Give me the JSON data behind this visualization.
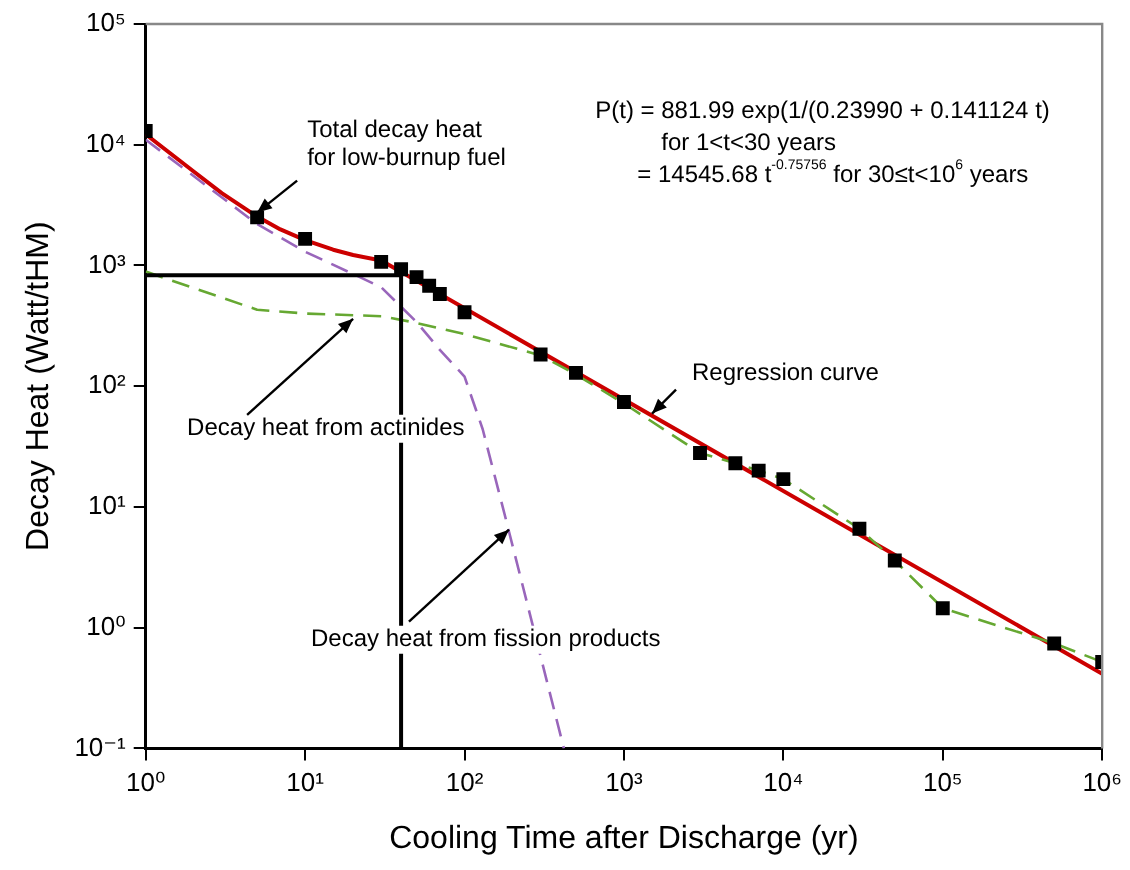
{
  "chart_data": {
    "type": "line",
    "xlabel": "Cooling Time after Discharge (yr)",
    "ylabel": "Decay Heat (Watt/tHM)",
    "log": "xy",
    "grid": false,
    "legend": false,
    "xlim": [
      1,
      1000000
    ],
    "ylim": [
      0.1,
      100000
    ],
    "xticks": [
      {
        "value": 1,
        "label": "10⁰"
      },
      {
        "value": 10,
        "label": "10¹"
      },
      {
        "value": 100,
        "label": "10²"
      },
      {
        "value": 1000,
        "label": "10³"
      },
      {
        "value": 10000,
        "label": "10⁴"
      },
      {
        "value": 100000,
        "label": "10⁵"
      },
      {
        "value": 1000000,
        "label": "10⁶"
      }
    ],
    "yticks": [
      {
        "value": 0.1,
        "label": "10⁻¹"
      },
      {
        "value": 1,
        "label": "10⁰"
      },
      {
        "value": 10,
        "label": "10¹"
      },
      {
        "value": 100,
        "label": "10²"
      },
      {
        "value": 1000,
        "label": "10³"
      },
      {
        "value": 10000,
        "label": "10⁴"
      },
      {
        "value": 100000,
        "label": "10⁵"
      }
    ],
    "series": [
      {
        "type": "line",
        "color": "#cc0000",
        "line_style": "solid",
        "marker": "none",
        "x": [
          1,
          2,
          3,
          5,
          7,
          10,
          15,
          20,
          30,
          1000000
        ],
        "values": [
          12200,
          6000,
          3980,
          2540,
          1990,
          1620,
          1350,
          1220,
          1100,
          0.415
        ]
      },
      {
        "type": "line",
        "color": "#9966bb",
        "line_style": "dashed",
        "marker": "none",
        "x": [
          1,
          5,
          10,
          20,
          30,
          50,
          70,
          100,
          130,
          180,
          420
        ],
        "values": [
          11000,
          2200,
          1300,
          850,
          660,
          340,
          200,
          120,
          44,
          8.3,
          0.1
        ]
      },
      {
        "type": "line",
        "color": "#66a832",
        "line_style": "dashed",
        "marker": "none",
        "x": [
          1,
          5,
          10,
          30,
          47,
          100,
          300,
          500,
          1000,
          3000,
          5000,
          7000,
          10000,
          30000,
          50000,
          100000,
          500000,
          1000000
        ],
        "values": [
          890,
          430,
          400,
          380,
          340,
          270,
          180,
          125,
          72,
          28,
          23,
          20,
          17,
          6.6,
          3.6,
          1.45,
          0.74,
          0.52
        ]
      },
      {
        "type": "scatter",
        "color": "#000000",
        "marker": "square",
        "x": [
          1,
          5,
          10,
          30,
          40,
          50,
          60,
          70,
          100,
          300,
          500,
          1000,
          3000,
          5000,
          7000,
          10000,
          30000,
          50000,
          100000,
          500000,
          1000000
        ],
        "values": [
          13000,
          2500,
          1660,
          1070,
          930,
          800,
          680,
          580,
          410,
          183,
          129,
          74,
          28,
          23,
          20,
          17,
          6.6,
          3.6,
          1.45,
          0.74,
          0.52
        ]
      },
      {
        "type": "line",
        "color": "#000000",
        "line_style": "solid",
        "marker": "none",
        "x": [
          1,
          40,
          40
        ],
        "values": [
          830,
          830,
          0.1
        ]
      }
    ],
    "annotations": [
      "P(t) = 881.99 exp(1/(0.23990 + 0.141124 t)\nfor 1<t<30 years\n= 14545.68 t$^{-0.75756}$ for 30≤t<10$^{6}$ years",
      {
        "text": "Total decay heat\nfor low-burnup fuel",
        "x": 5,
        "y": 2540
      },
      {
        "text": "Regression curve",
        "x": 1500,
        "y": 55
      },
      {
        "text": "Decay heat from actinides",
        "x": 20,
        "y": 390
      },
      {
        "text": "Decay heat from fission products",
        "x": 190,
        "y": 7
      }
    ]
  }
}
